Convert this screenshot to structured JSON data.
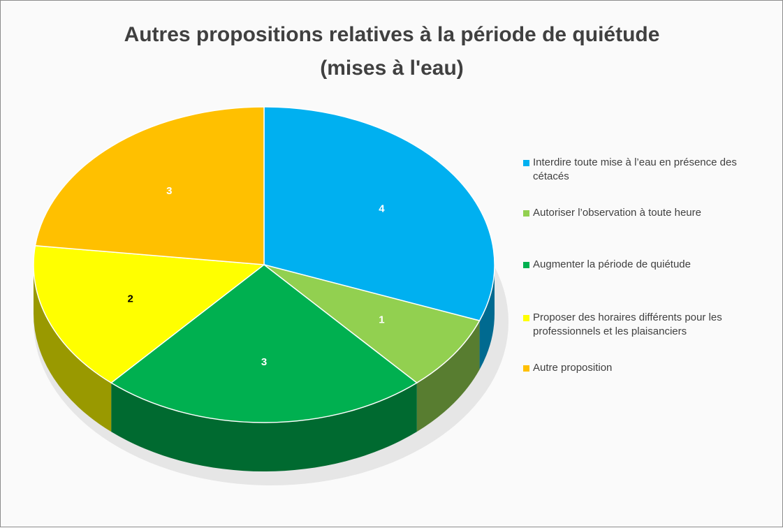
{
  "chart_data": {
    "type": "pie",
    "title": [
      "Autres propositions relatives à la période de quiétude",
      "(mises à l'eau)"
    ],
    "categories": [
      "Interdire toute mise à l’eau en présence des cétacés",
      "Autoriser l’observation à toute heure",
      "Augmenter la période de quiétude",
      "Proposer des horaires différents pour les professionnels et les plaisanciers",
      "Autre proposition"
    ],
    "values": [
      4,
      1,
      3,
      2,
      3
    ],
    "colors": [
      "#00b0f0",
      "#92d050",
      "#00b050",
      "#ffff00",
      "#ffc000"
    ],
    "legend": "right"
  }
}
